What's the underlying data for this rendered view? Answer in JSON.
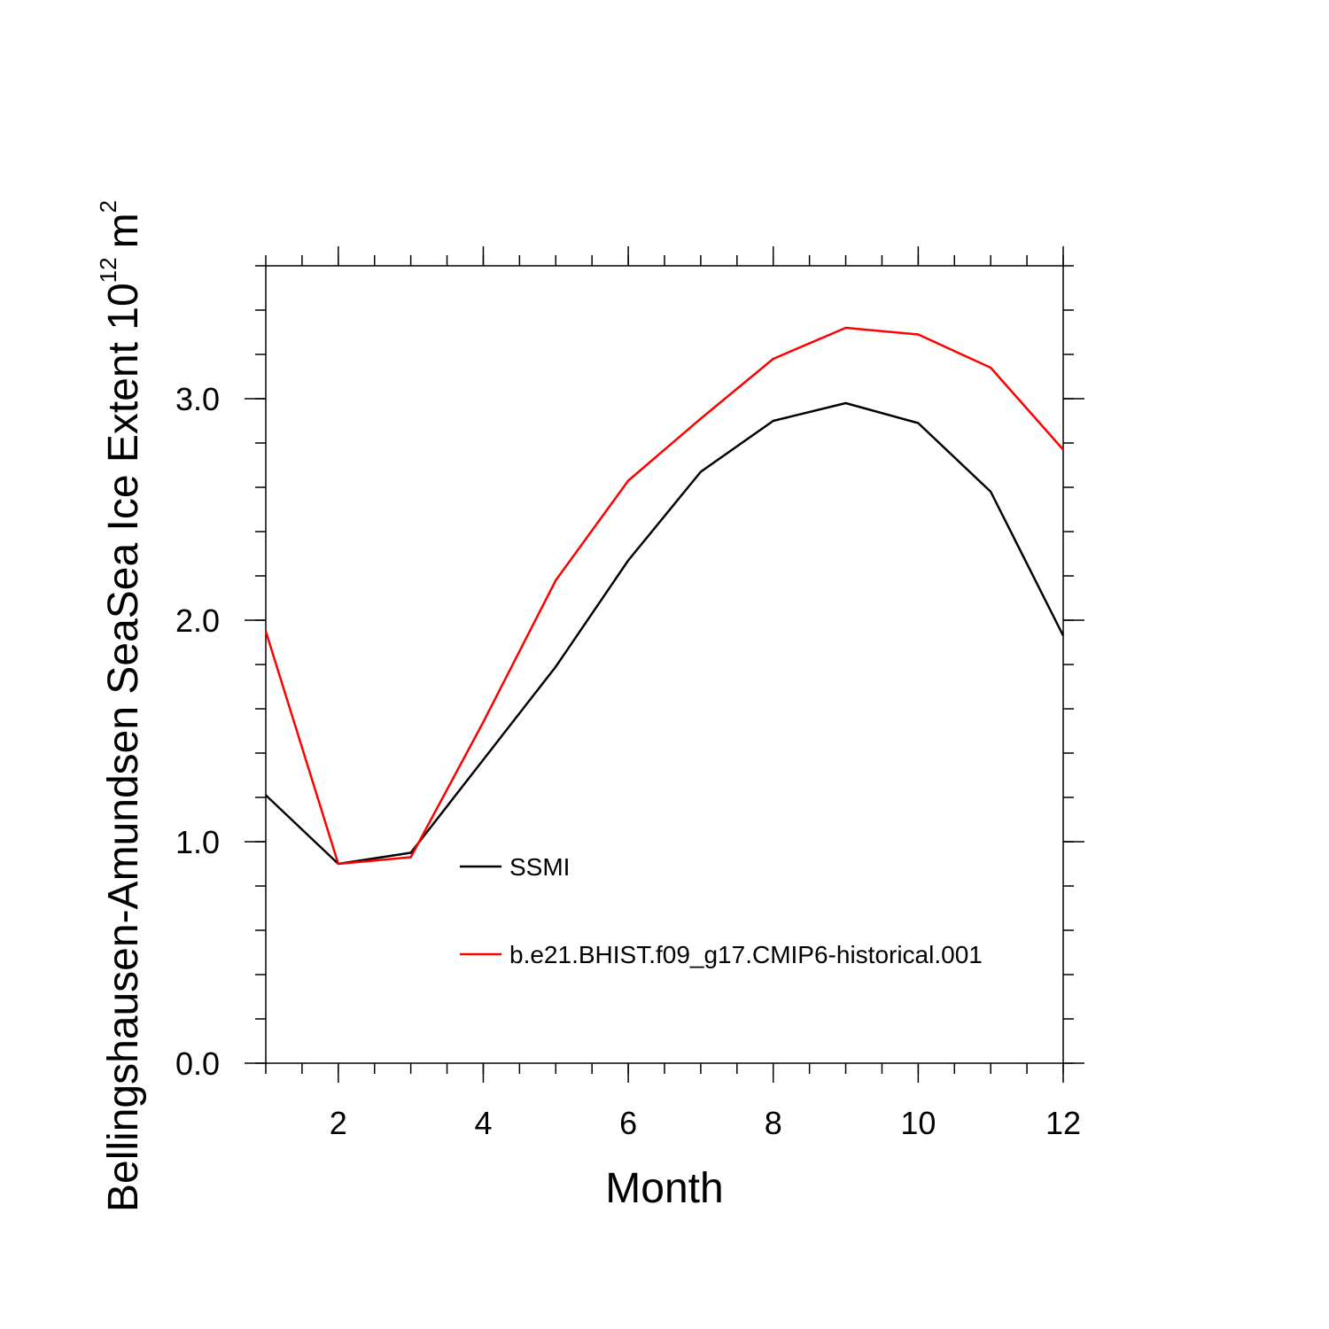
{
  "chart_data": {
    "type": "line",
    "title": "",
    "xlabel": "Month",
    "ylabel": "Bellingshausen-Amundsen SeaSea Ice Extent 10",
    "ylabel_exponent": "12",
    "ylabel_unit": "m",
    "ylabel_unit_exponent": "2",
    "xlim": [
      1,
      12
    ],
    "ylim": [
      0,
      3.6
    ],
    "x_ticks": [
      2,
      4,
      6,
      8,
      10,
      12
    ],
    "x_tick_labels": [
      "2",
      "4",
      "6",
      "8",
      "10",
      "12"
    ],
    "y_ticks": [
      0,
      1,
      2,
      3
    ],
    "y_tick_labels": [
      "0.0",
      "1.0",
      "2.0",
      "3.0"
    ],
    "grid": false,
    "legend_position": "center",
    "x": [
      1,
      2,
      3,
      4,
      5,
      6,
      7,
      8,
      9,
      10,
      11,
      12
    ],
    "series": [
      {
        "name": "SSMI",
        "color": "#000000",
        "values": [
          1.21,
          0.9,
          0.95,
          1.37,
          1.79,
          2.27,
          2.67,
          2.9,
          2.98,
          2.89,
          2.58,
          1.93
        ]
      },
      {
        "name": "b.e21.BHIST.f09_g17.CMIP6-historical.001",
        "color": "#ff0000",
        "values": [
          1.95,
          0.9,
          0.93,
          1.54,
          2.18,
          2.63,
          2.91,
          3.18,
          3.32,
          3.29,
          3.14,
          2.77
        ]
      }
    ]
  }
}
